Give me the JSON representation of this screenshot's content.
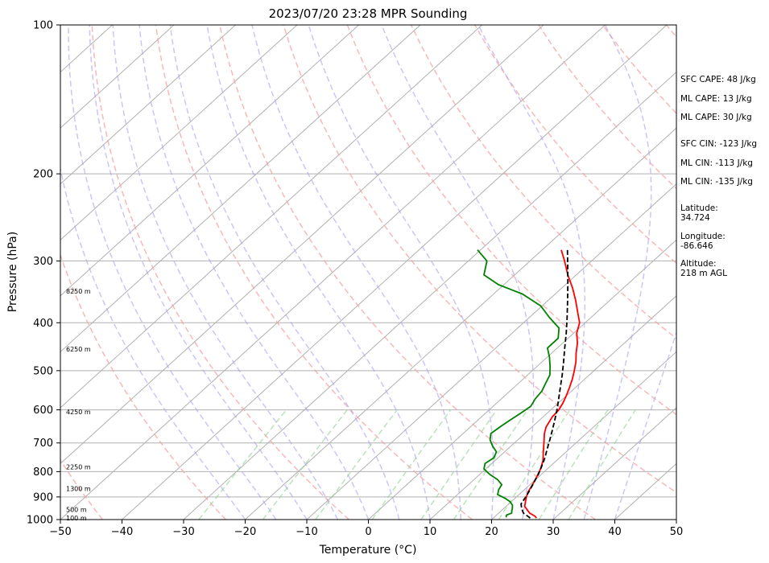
{
  "chart_data": {
    "type": "line",
    "title": "2023/07/20 23:28 MPR Sounding",
    "xlabel": "Temperature (°C)",
    "ylabel": "Pressure (hPa)",
    "xlim": [
      -50,
      50
    ],
    "ylim": [
      1000,
      100
    ],
    "y_scale": "log",
    "skew": "skew-T",
    "grid": true,
    "x_ticks": [
      -50,
      -40,
      -30,
      -20,
      -10,
      0,
      10,
      20,
      30,
      40,
      50
    ],
    "y_ticks": [
      100,
      200,
      300,
      400,
      500,
      600,
      700,
      800,
      900,
      1000
    ],
    "height_labels": [
      {
        "p": 993,
        "text": "100 m"
      },
      {
        "p": 955,
        "text": "500 m"
      },
      {
        "p": 865,
        "text": "1300 m"
      },
      {
        "p": 782,
        "text": "2250 m"
      },
      {
        "p": 605,
        "text": "4250 m"
      },
      {
        "p": 452,
        "text": "6250 m"
      },
      {
        "p": 345,
        "text": "8250 m"
      }
    ],
    "annotations": [
      "SFC CAPE: 48 J/kg",
      "ML CAPE: 13 J/kg",
      "ML CAPE: 30 J/kg",
      "SFC CIN: -123 J/kg",
      "ML CIN: -113 J/kg",
      "ML CIN: -135 J/kg",
      "Latitude:",
      "34.724",
      "Longitude:",
      "-86.646",
      "Altitude:",
      "218 m AGL"
    ],
    "series": [
      {
        "color": "#ff0000",
        "style": "solid",
        "p": [
          993,
          985,
          970,
          955,
          940,
          920,
          900,
          880,
          850,
          820,
          790,
          760,
          730,
          700,
          670,
          650,
          620,
          600,
          580,
          560,
          540,
          520,
          500,
          480,
          460,
          440,
          420,
          400,
          380,
          360,
          340,
          320,
          300,
          285
        ],
        "t": [
          27.0,
          26.5,
          25.0,
          24.0,
          23.0,
          22.3,
          21.6,
          21.0,
          20.4,
          19.7,
          18.9,
          17.8,
          16.3,
          14.8,
          13.2,
          12.3,
          11.5,
          11.3,
          10.7,
          9.9,
          9.0,
          8.0,
          6.8,
          5.5,
          3.9,
          2.4,
          0.5,
          -0.9,
          -3.2,
          -5.6,
          -8.3,
          -11.4,
          -14.4,
          -16.9
        ]
      },
      {
        "color": "#008000",
        "style": "solid",
        "p": [
          990,
          980,
          970,
          960,
          950,
          935,
          920,
          905,
          890,
          870,
          850,
          830,
          810,
          790,
          770,
          750,
          730,
          710,
          690,
          670,
          650,
          630,
          610,
          590,
          570,
          550,
          530,
          510,
          490,
          470,
          450,
          430,
          410,
          390,
          370,
          350,
          335,
          320,
          300,
          285
        ],
        "t": [
          22.0,
          21.6,
          22.1,
          21.7,
          21.4,
          20.8,
          19.8,
          18.3,
          16.5,
          15.8,
          15.4,
          13.8,
          11.6,
          9.7,
          8.9,
          9.3,
          8.7,
          7.0,
          5.5,
          4.5,
          4.8,
          5.2,
          5.7,
          6.1,
          5.5,
          5.2,
          4.4,
          3.6,
          2.1,
          0.4,
          -1.6,
          -1.6,
          -3.3,
          -6.8,
          -10.2,
          -15.3,
          -20.9,
          -25.0,
          -27.0,
          -30.5
        ]
      },
      {
        "color": "#000000",
        "style": "dashed",
        "p": [
          993,
          970,
          950,
          930,
          900,
          870,
          840,
          810,
          780,
          750,
          720,
          690,
          660,
          630,
          600,
          570,
          540,
          510,
          480,
          450,
          420,
          390,
          360,
          330,
          300,
          285
        ],
        "t": [
          26.0,
          24.0,
          22.9,
          22.0,
          21.5,
          20.9,
          20.2,
          19.5,
          18.6,
          17.6,
          16.4,
          15.2,
          13.9,
          12.5,
          11.0,
          9.3,
          7.5,
          5.6,
          3.5,
          1.2,
          -1.2,
          -3.9,
          -6.9,
          -10.2,
          -13.9,
          -15.9
        ]
      }
    ]
  }
}
